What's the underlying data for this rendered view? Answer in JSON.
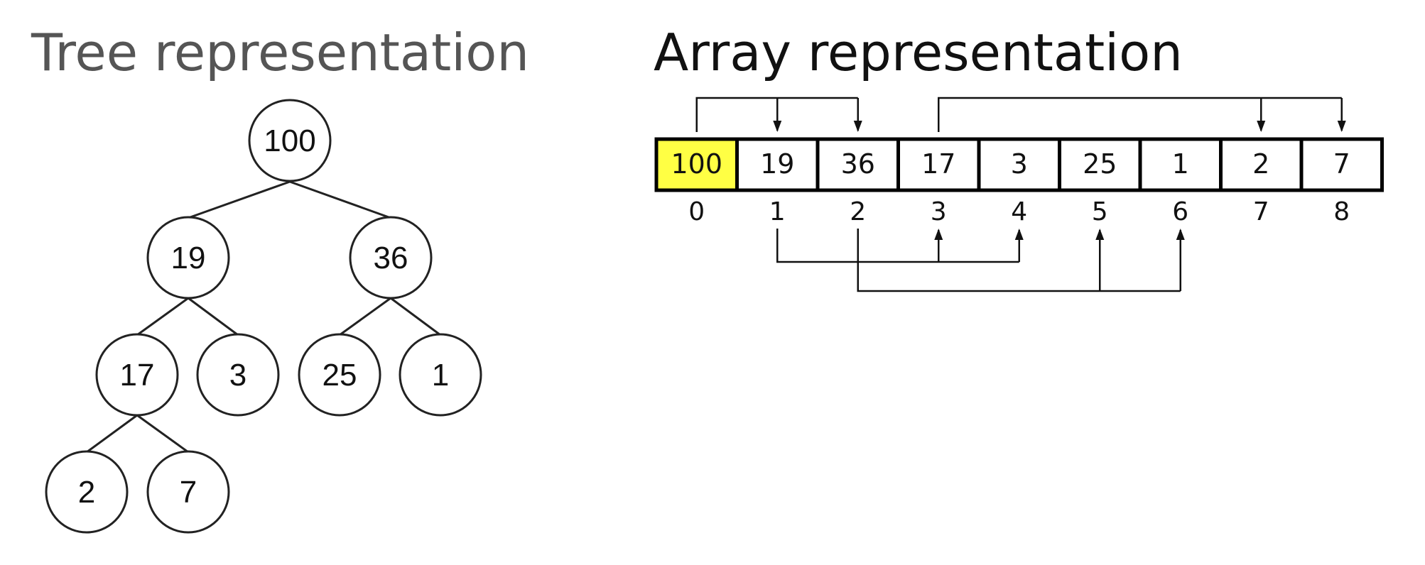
{
  "tree": {
    "title": "Tree representation",
    "nodes": [
      "100",
      "19",
      "36",
      "17",
      "3",
      "25",
      "1",
      "2",
      "7"
    ]
  },
  "array": {
    "title": "Array representation",
    "cells": [
      "100",
      "19",
      "36",
      "17",
      "3",
      "25",
      "1",
      "2",
      "7"
    ],
    "indices": [
      "0",
      "1",
      "2",
      "3",
      "4",
      "5",
      "6",
      "7",
      "8"
    ],
    "highlight_index": 0,
    "colors": {
      "highlight": "#ffff44",
      "cell": "#ffffff",
      "border": "#000000"
    },
    "links_top": [
      {
        "from": 0,
        "to": [
          1,
          2
        ]
      },
      {
        "from": 3,
        "to": [
          7,
          8
        ]
      }
    ],
    "links_bottom": [
      {
        "from": 1,
        "to": [
          3,
          4
        ]
      },
      {
        "from": 2,
        "to": [
          5,
          6
        ]
      }
    ]
  }
}
